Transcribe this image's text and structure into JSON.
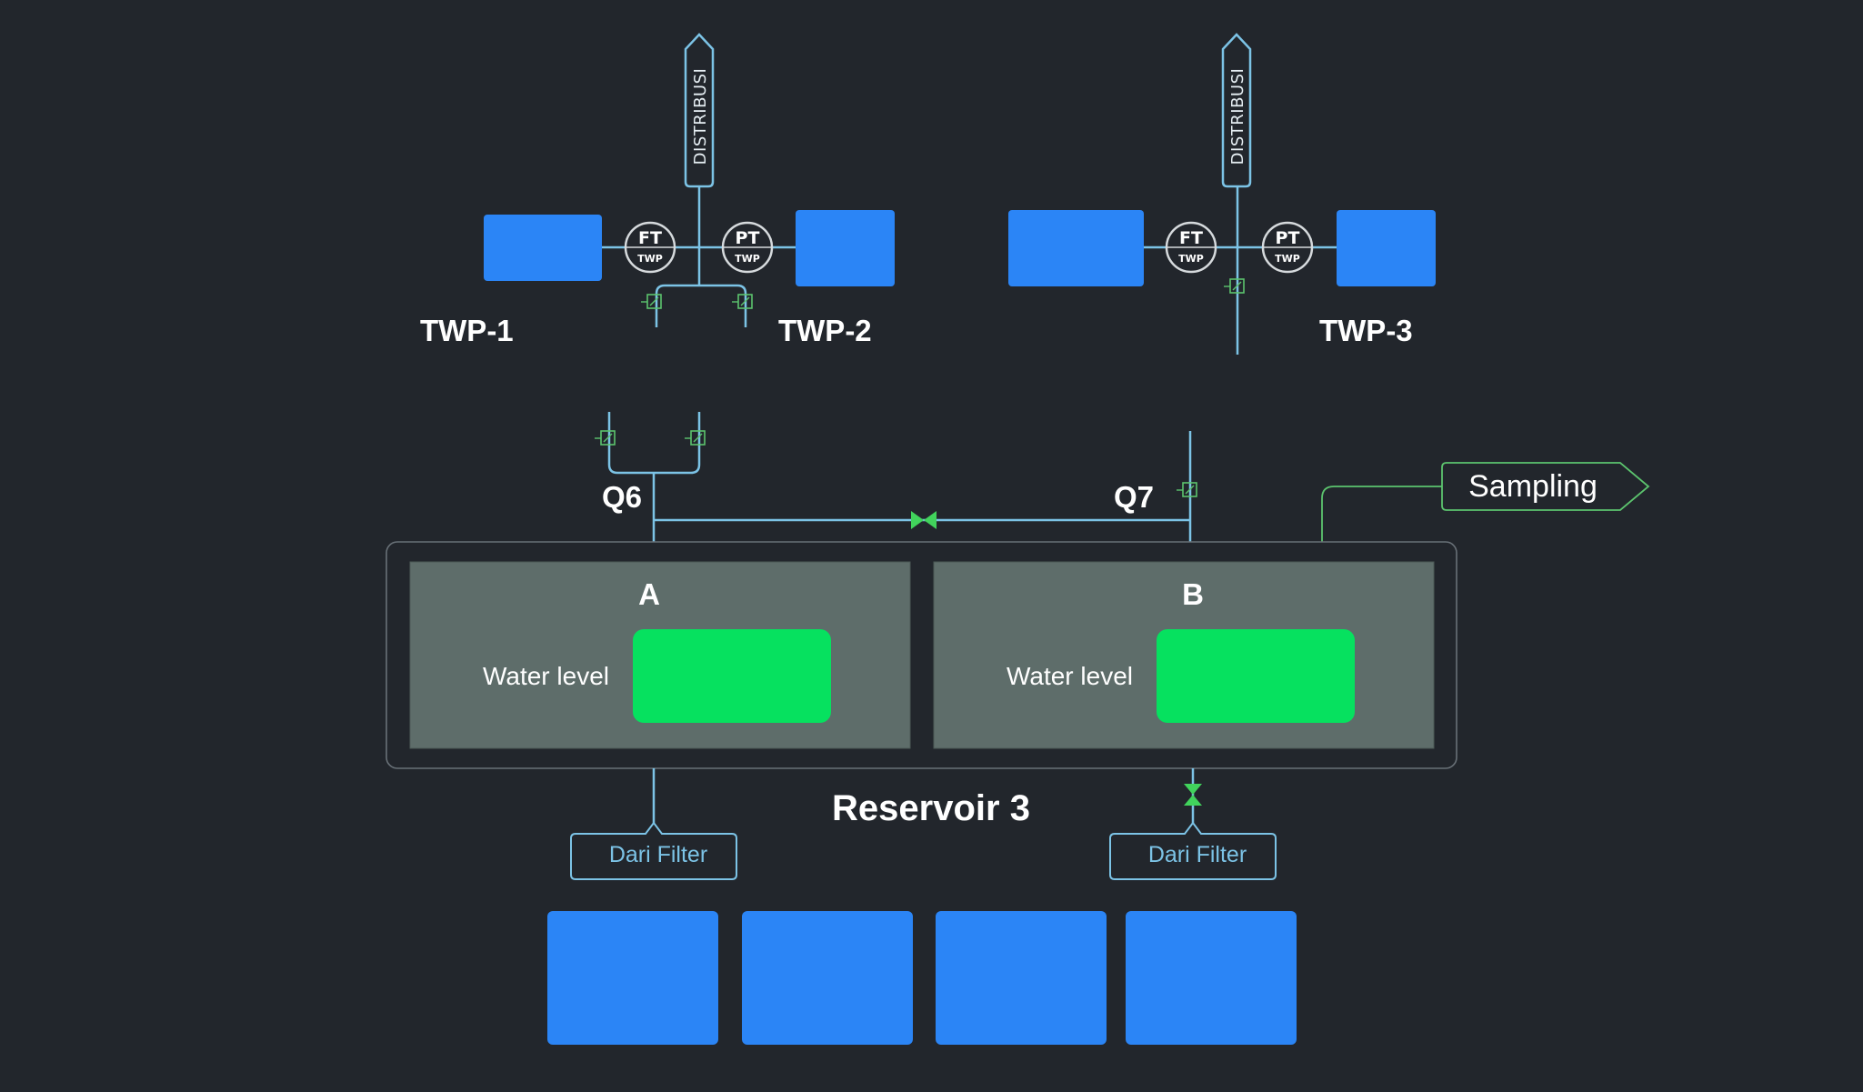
{
  "header": {
    "distribusi_left": "DISTRIBUSI",
    "distribusi_right": "DISTRIBUSI"
  },
  "pumps": {
    "twp1": "TWP-1",
    "twp2": "TWP-2",
    "twp3": "TWP-3"
  },
  "instruments": {
    "ft_left": {
      "tag": "FT",
      "sub": "TWP"
    },
    "pt_left": {
      "tag": "PT",
      "sub": "TWP"
    },
    "ft_right": {
      "tag": "FT",
      "sub": "TWP"
    },
    "pt_right": {
      "tag": "PT",
      "sub": "TWP"
    }
  },
  "lines": {
    "q6": "Q6",
    "q7": "Q7",
    "sampling": "Sampling"
  },
  "reservoir": {
    "title": "Reservoir 3",
    "compartment_a": {
      "title": "A",
      "level_label": "Water level"
    },
    "compartment_b": {
      "title": "B",
      "level_label": "Water level"
    }
  },
  "inlets": {
    "left": "Dari Filter",
    "right": "Dari Filter"
  },
  "colors": {
    "background": "#22262c",
    "pipe": "#7cc3e6",
    "status_block": "#2b85f6",
    "water_level": "#06e15f",
    "valve": "#41d35c",
    "compartment": "#5e6d6a"
  },
  "icons": {
    "damper": "damper-icon",
    "valve": "butterfly-valve-icon",
    "arrow_tag": "arrow-tag-icon"
  }
}
